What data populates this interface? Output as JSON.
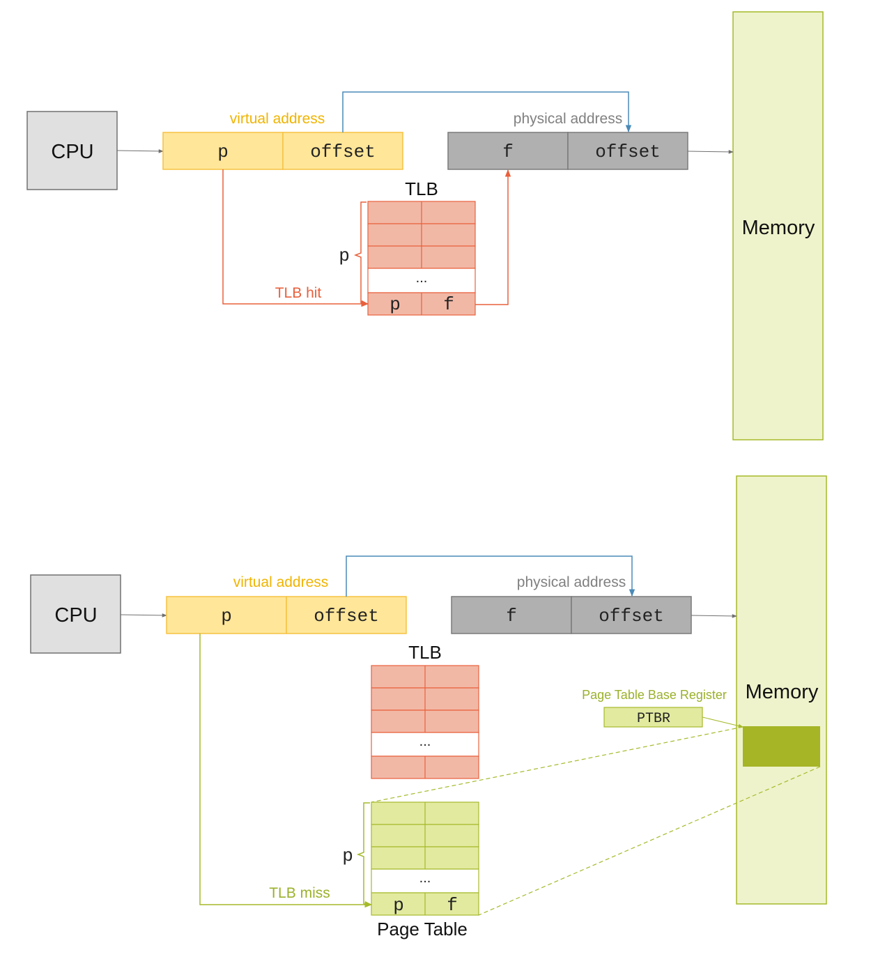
{
  "colors": {
    "cpu_fill": "#e0e0e0",
    "cpu_stroke": "#707070",
    "virtual_fill": "#ffe699",
    "virtual_stroke": "#f5c242",
    "virtual_text": "#f0b400",
    "physical_fill": "#b0b0b0",
    "physical_stroke": "#7a7a7a",
    "physical_text": "#808080",
    "offset_arrow": "#4a8ab8",
    "tlb_fill": "#f2b8a6",
    "tlb_stroke": "#e8603c",
    "tlb_text": "#e8603c",
    "page_table_fill": "#e2eaa0",
    "page_table_stroke": "#a6b92a",
    "page_table_text": "#9bb02a",
    "memory_fill": "#eff3cb",
    "memory_stroke": "#a6b92a",
    "memory_block": "#a5b526",
    "ptbr_fill": "#e2eaa0"
  },
  "hit_panel": {
    "cpu_label": "CPU",
    "virtual_address_label": "virtual address",
    "vaddr_page": "p",
    "vaddr_offset": "offset",
    "physical_address_label": "physical address",
    "paddr_frame": "f",
    "paddr_offset": "offset",
    "tlb_title": "TLB",
    "tlb_ellipsis": "...",
    "tlb_entry_page": "p",
    "tlb_entry_frame": "f",
    "bracket_label": "p",
    "tlb_hit_label": "TLB hit",
    "memory_label": "Memory"
  },
  "miss_panel": {
    "cpu_label": "CPU",
    "virtual_address_label": "virtual address",
    "vaddr_page": "p",
    "vaddr_offset": "offset",
    "physical_address_label": "physical address",
    "paddr_frame": "f",
    "paddr_offset": "offset",
    "tlb_title": "TLB",
    "tlb_ellipsis": "...",
    "memory_label": "Memory",
    "ptbr_caption": "Page Table Base Register",
    "ptbr_label": "PTBR",
    "pt_ellipsis": "...",
    "pt_entry_page": "p",
    "pt_entry_frame": "f",
    "bracket_label": "p",
    "tlb_miss_label": "TLB miss",
    "page_table_title": "Page Table"
  }
}
